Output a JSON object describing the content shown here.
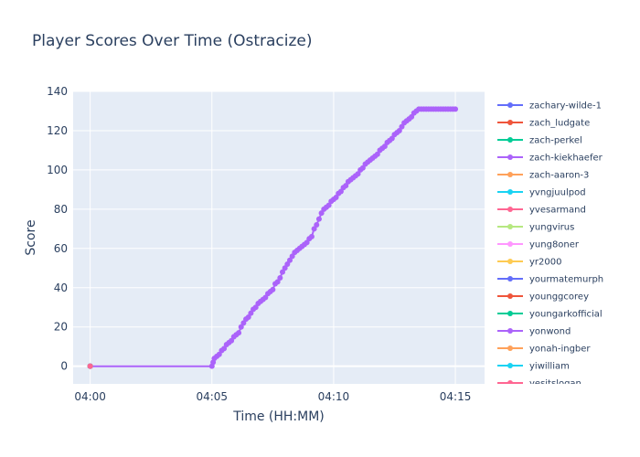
{
  "chart_data": {
    "type": "line",
    "title": "Player Scores Over Time (Ostracize)",
    "xlabel": "Time (HH:MM)",
    "ylabel": "Score",
    "x_ticks": [
      "04:00",
      "04:05",
      "04:10",
      "04:15"
    ],
    "x_tick_minutes": [
      0,
      5,
      10,
      15
    ],
    "xlim_minutes": [
      -0.7,
      16.2
    ],
    "ylim": [
      -9,
      140
    ],
    "y_ticks": [
      0,
      20,
      40,
      60,
      80,
      100,
      120,
      140
    ],
    "grid": true,
    "legend_position": "right",
    "series": [
      {
        "name": "zachary-wilde-1",
        "color": "#636efa",
        "x_minutes": [
          0.0
        ],
        "values": [
          0
        ]
      },
      {
        "name": "zach_ludgate",
        "color": "#EF553B",
        "x_minutes": [
          0.0
        ],
        "values": [
          0
        ]
      },
      {
        "name": "zach-perkel",
        "color": "#00cc96",
        "x_minutes": [
          0.0
        ],
        "values": [
          0
        ]
      },
      {
        "name": "zach-kiekhaefer",
        "color": "#ab63fa",
        "x_minutes": [
          0.0,
          5.0,
          5.05,
          5.1,
          5.2,
          5.3,
          5.4,
          5.5,
          5.6,
          5.7,
          5.8,
          5.9,
          6.0,
          6.1,
          6.2,
          6.3,
          6.4,
          6.5,
          6.6,
          6.7,
          6.8,
          6.9,
          7.0,
          7.1,
          7.2,
          7.3,
          7.4,
          7.5,
          7.6,
          7.7,
          7.8,
          7.9,
          8.0,
          8.1,
          8.2,
          8.3,
          8.4,
          8.5,
          8.6,
          8.7,
          8.8,
          8.9,
          9.0,
          9.1,
          9.2,
          9.3,
          9.4,
          9.5,
          9.6,
          9.7,
          9.8,
          9.9,
          10.0,
          10.1,
          10.2,
          10.3,
          10.4,
          10.5,
          10.6,
          10.7,
          10.8,
          10.9,
          11.0,
          11.1,
          11.2,
          11.3,
          11.4,
          11.5,
          11.6,
          11.7,
          11.8,
          11.9,
          12.0,
          12.1,
          12.2,
          12.3,
          12.4,
          12.5,
          12.6,
          12.7,
          12.8,
          12.9,
          13.0,
          13.1,
          13.2,
          13.3,
          13.4,
          13.5,
          13.6,
          13.7,
          13.8,
          13.9,
          14.0,
          14.1,
          14.2,
          14.3,
          14.4,
          14.5,
          14.6,
          14.7,
          14.8,
          14.9,
          15.0
        ],
        "values": [
          0,
          0,
          2,
          4,
          5,
          6,
          8,
          9,
          11,
          12,
          13,
          15,
          16,
          17,
          20,
          22,
          24,
          25,
          27,
          29,
          30,
          32,
          33,
          34,
          35,
          37,
          38,
          39,
          42,
          43,
          45,
          48,
          50,
          52,
          54,
          56,
          58,
          59,
          60,
          61,
          62,
          63,
          65,
          66,
          70,
          72,
          75,
          78,
          80,
          81,
          82,
          84,
          85,
          86,
          88,
          89,
          91,
          92,
          94,
          95,
          96,
          97,
          98,
          100,
          101,
          103,
          104,
          105,
          106,
          107,
          108,
          110,
          111,
          112,
          114,
          115,
          116,
          118,
          119,
          120,
          122,
          124,
          125,
          126,
          127,
          129,
          130,
          131,
          131,
          131,
          131,
          131,
          131,
          131,
          131,
          131,
          131,
          131,
          131,
          131,
          131,
          131,
          131
        ]
      },
      {
        "name": "zach-aaron-3",
        "color": "#FFA15A",
        "x_minutes": [
          0.0
        ],
        "values": [
          0
        ]
      },
      {
        "name": "yvngjuulpod",
        "color": "#19d3f3",
        "x_minutes": [
          0.0
        ],
        "values": [
          0
        ]
      },
      {
        "name": "yvesarmand",
        "color": "#FF6692",
        "x_minutes": [
          0.0
        ],
        "values": [
          0
        ]
      },
      {
        "name": "yungvirus",
        "color": "#B6E880",
        "x_minutes": [
          0.0
        ],
        "values": [
          0
        ]
      },
      {
        "name": "yung8oner",
        "color": "#FF97FF",
        "x_minutes": [
          0.0
        ],
        "values": [
          0
        ]
      },
      {
        "name": "yr2000",
        "color": "#FECB52",
        "x_minutes": [
          0.0
        ],
        "values": [
          0
        ]
      },
      {
        "name": "yourmatemurph",
        "color": "#636efa",
        "x_minutes": [
          0.0
        ],
        "values": [
          0
        ]
      },
      {
        "name": "younggcorey",
        "color": "#EF553B",
        "x_minutes": [
          0.0
        ],
        "values": [
          0
        ]
      },
      {
        "name": "youngarkofficial",
        "color": "#00cc96",
        "x_minutes": [
          0.0
        ],
        "values": [
          0
        ]
      },
      {
        "name": "yonwond",
        "color": "#ab63fa",
        "x_minutes": [
          0.0
        ],
        "values": [
          0
        ]
      },
      {
        "name": "yonah-ingber",
        "color": "#FFA15A",
        "x_minutes": [
          0.0
        ],
        "values": [
          0
        ]
      },
      {
        "name": "yiwilliam",
        "color": "#19d3f3",
        "x_minutes": [
          0.0
        ],
        "values": [
          0
        ]
      },
      {
        "name": "yesitslogan",
        "color": "#FF6692",
        "x_minutes": [
          0.0
        ],
        "values": [
          0
        ]
      }
    ]
  }
}
